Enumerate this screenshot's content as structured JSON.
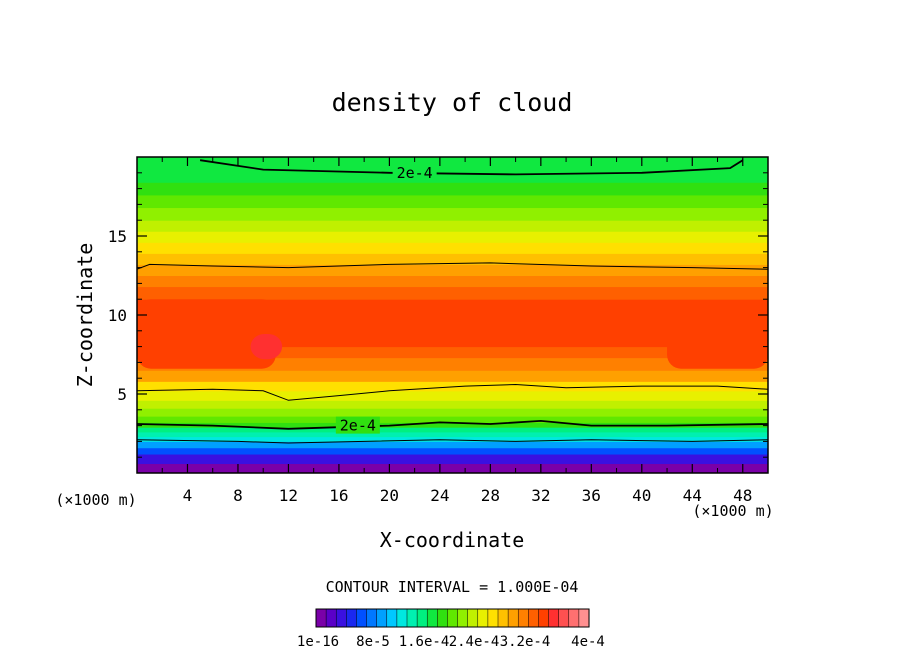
{
  "chart_data": {
    "type": "heatmap",
    "title": "density of cloud",
    "xlabel": "X-coordinate",
    "ylabel": "Z-coordinate",
    "x_unit": "(×1000 m)",
    "y_unit": "(×1000 m)",
    "xlim": [
      0,
      50
    ],
    "ylim": [
      0,
      20
    ],
    "x_ticks": [
      "4",
      "8",
      "12",
      "16",
      "20",
      "24",
      "28",
      "32",
      "36",
      "40",
      "44",
      "48"
    ],
    "x_tick_values": [
      4,
      8,
      12,
      16,
      20,
      24,
      28,
      32,
      36,
      40,
      44,
      48
    ],
    "y_ticks": [
      "5",
      "10",
      "15"
    ],
    "y_tick_values": [
      5,
      10,
      15
    ],
    "contour_interval_text": "CONTOUR INTERVAL = 1.000E-04",
    "contour_labels": [
      {
        "text": "2e-4",
        "x": 22.0,
        "z": 19.0
      },
      {
        "text": "2e-4",
        "x": 17.5,
        "z": 3.0
      }
    ],
    "color_levels": [
      "#7a00a8",
      "#5a00c8",
      "#3a10e0",
      "#1a28f0",
      "#0050ff",
      "#0078ff",
      "#00a0ff",
      "#00c8ff",
      "#00e8e0",
      "#00f0b0",
      "#00f080",
      "#10e840",
      "#30e010",
      "#60e800",
      "#90f000",
      "#c0f000",
      "#e8f000",
      "#ffe000",
      "#ffc000",
      "#ffa000",
      "#ff8000",
      "#ff6000",
      "#ff4000",
      "#ff3030",
      "#ff5050",
      "#ff7070",
      "#ff9090"
    ],
    "colorbar_labels": [
      "1e-16",
      "8e-5",
      "1.6e-4",
      "2.4e-4",
      "3.2e-4",
      "4e-4"
    ],
    "vertical_profile": [
      {
        "z": 0.6,
        "color": "#7a00a8"
      },
      {
        "z": 1.2,
        "color": "#3a10e0"
      },
      {
        "z": 1.6,
        "color": "#0050ff"
      },
      {
        "z": 2.0,
        "color": "#00a0ff"
      },
      {
        "z": 2.3,
        "color": "#00e8e0"
      },
      {
        "z": 2.6,
        "color": "#00f0b0"
      },
      {
        "z": 2.9,
        "color": "#00f080"
      },
      {
        "z": 3.2,
        "color": "#30e010"
      },
      {
        "z": 3.6,
        "color": "#60e800"
      },
      {
        "z": 4.1,
        "color": "#90f000"
      },
      {
        "z": 4.6,
        "color": "#c0f000"
      },
      {
        "z": 5.2,
        "color": "#e8f000"
      },
      {
        "z": 5.8,
        "color": "#ffe000"
      },
      {
        "z": 6.5,
        "color": "#ffa000"
      },
      {
        "z": 7.3,
        "color": "#ff8000"
      },
      {
        "z": 8.0,
        "color": "#ff6000"
      },
      {
        "z": 10.0,
        "color": "#ff4000"
      },
      {
        "z": 11.0,
        "color": "#ff4000"
      },
      {
        "z": 11.8,
        "color": "#ff6000"
      },
      {
        "z": 12.5,
        "color": "#ff8000"
      },
      {
        "z": 13.2,
        "color": "#ffa000"
      },
      {
        "z": 13.9,
        "color": "#ffc000"
      },
      {
        "z": 14.6,
        "color": "#ffe000"
      },
      {
        "z": 15.3,
        "color": "#e8f000"
      },
      {
        "z": 16.0,
        "color": "#c0f000"
      },
      {
        "z": 16.8,
        "color": "#90f000"
      },
      {
        "z": 17.6,
        "color": "#60e800"
      },
      {
        "z": 18.4,
        "color": "#30e010"
      },
      {
        "z": 19.2,
        "color": "#10e840"
      },
      {
        "z": 20.0,
        "color": "#10e840"
      }
    ],
    "core_regions": [
      {
        "x": [
          0,
          11
        ],
        "z": [
          6.6,
          11.0
        ],
        "color": "#ff4000"
      },
      {
        "x": [
          42,
          50
        ],
        "z": [
          6.6,
          10.6
        ],
        "color": "#ff4000"
      },
      {
        "x": [
          9,
          11.5
        ],
        "z": [
          7.2,
          8.8
        ],
        "color": "#ff3030"
      }
    ],
    "contours": [
      {
        "label": "2e-4",
        "points": [
          [
            5,
            19.8
          ],
          [
            10,
            19.2
          ],
          [
            20,
            19.0
          ],
          [
            30,
            18.9
          ],
          [
            40,
            19.0
          ],
          [
            47,
            19.3
          ],
          [
            48,
            19.8
          ]
        ]
      },
      {
        "points": [
          [
            0,
            12.9
          ],
          [
            1,
            13.2
          ],
          [
            6,
            13.1
          ],
          [
            12,
            13.0
          ],
          [
            20,
            13.2
          ],
          [
            28,
            13.3
          ],
          [
            36,
            13.1
          ],
          [
            44,
            13.0
          ],
          [
            50,
            12.9
          ]
        ]
      },
      {
        "points": [
          [
            0,
            5.2
          ],
          [
            6,
            5.3
          ],
          [
            10,
            5.2
          ],
          [
            12,
            4.6
          ],
          [
            16,
            4.9
          ],
          [
            20,
            5.2
          ],
          [
            26,
            5.5
          ],
          [
            30,
            5.6
          ],
          [
            34,
            5.4
          ],
          [
            40,
            5.5
          ],
          [
            46,
            5.5
          ],
          [
            50,
            5.3
          ]
        ]
      },
      {
        "label": "2e-4",
        "points": [
          [
            0,
            3.1
          ],
          [
            6,
            3.0
          ],
          [
            12,
            2.8
          ],
          [
            16,
            2.9
          ],
          [
            20,
            3.0
          ],
          [
            24,
            3.2
          ],
          [
            28,
            3.1
          ],
          [
            32,
            3.3
          ],
          [
            36,
            3.0
          ],
          [
            42,
            3.0
          ],
          [
            50,
            3.1
          ]
        ]
      },
      {
        "points": [
          [
            0,
            2.1
          ],
          [
            8,
            2.0
          ],
          [
            12,
            1.9
          ],
          [
            18,
            2.0
          ],
          [
            24,
            2.1
          ],
          [
            30,
            2.0
          ],
          [
            36,
            2.1
          ],
          [
            44,
            2.0
          ],
          [
            50,
            2.1
          ]
        ]
      }
    ]
  }
}
